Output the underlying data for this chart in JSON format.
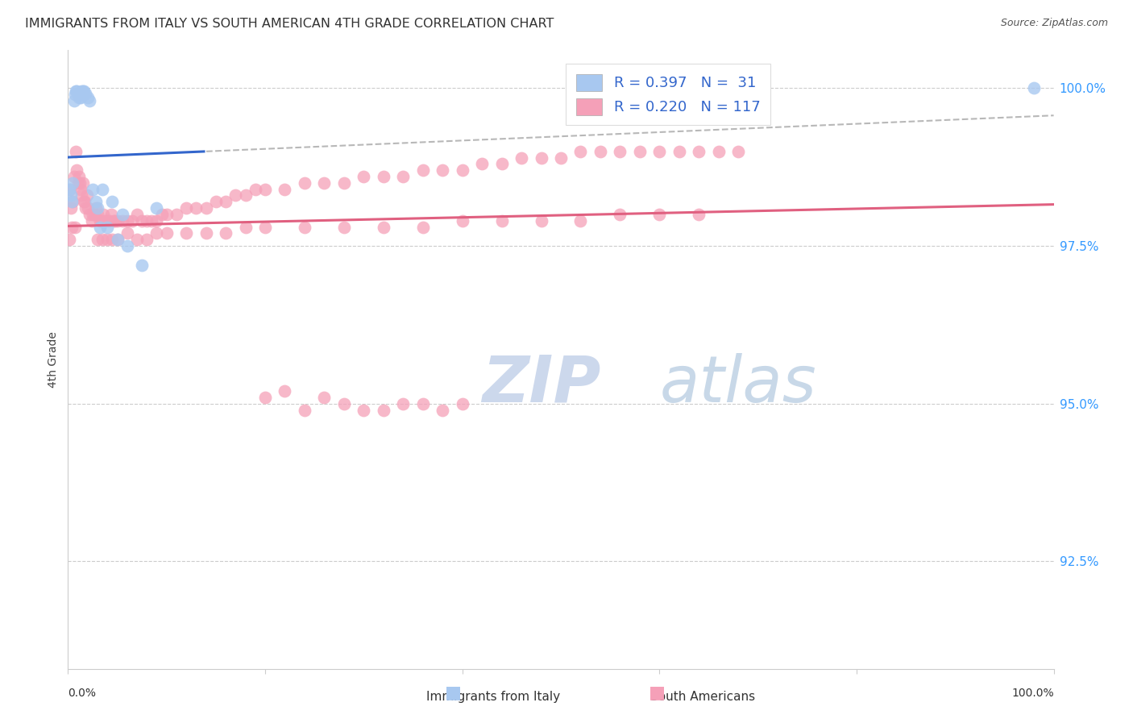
{
  "title": "IMMIGRANTS FROM ITALY VS SOUTH AMERICAN 4TH GRADE CORRELATION CHART",
  "source": "Source: ZipAtlas.com",
  "ylabel": "4th Grade",
  "ytick_values": [
    1.0,
    0.975,
    0.95,
    0.925
  ],
  "xmin": 0.0,
  "xmax": 1.0,
  "ymin": 0.908,
  "ymax": 1.006,
  "legend_italy_r": "R = 0.397",
  "legend_italy_n": "N =  31",
  "legend_sa_r": "R = 0.220",
  "legend_sa_n": "N = 117",
  "italy_color": "#a8c8f0",
  "sa_color": "#f5a0b8",
  "italy_line_color": "#3366cc",
  "sa_line_color": "#e06080",
  "dashed_line_color": "#b8b8b8",
  "background_color": "#ffffff",
  "watermark_zip": "ZIP",
  "watermark_atlas": "atlas",
  "watermark_zip_color": "#ccd8ec",
  "watermark_atlas_color": "#c8d8e8",
  "italy_x": [
    0.001,
    0.003,
    0.004,
    0.005,
    0.006,
    0.007,
    0.008,
    0.009,
    0.01,
    0.011,
    0.012,
    0.013,
    0.014,
    0.015,
    0.016,
    0.018,
    0.02,
    0.022,
    0.025,
    0.028,
    0.03,
    0.032,
    0.035,
    0.04,
    0.045,
    0.05,
    0.055,
    0.06,
    0.075,
    0.09,
    0.98
  ],
  "italy_y": [
    0.984,
    0.983,
    0.982,
    0.985,
    0.998,
    0.999,
    0.9995,
    0.9995,
    0.999,
    0.9985,
    0.999,
    0.9985,
    0.9995,
    0.9995,
    0.9995,
    0.9992,
    0.9985,
    0.998,
    0.984,
    0.982,
    0.981,
    0.978,
    0.984,
    0.978,
    0.982,
    0.976,
    0.98,
    0.975,
    0.972,
    0.981,
    1.0
  ],
  "sa_x": [
    0.001,
    0.002,
    0.003,
    0.004,
    0.005,
    0.006,
    0.007,
    0.008,
    0.009,
    0.01,
    0.011,
    0.012,
    0.013,
    0.014,
    0.015,
    0.016,
    0.017,
    0.018,
    0.019,
    0.02,
    0.022,
    0.024,
    0.025,
    0.027,
    0.028,
    0.03,
    0.032,
    0.034,
    0.036,
    0.038,
    0.04,
    0.042,
    0.044,
    0.046,
    0.048,
    0.05,
    0.055,
    0.06,
    0.065,
    0.07,
    0.075,
    0.08,
    0.085,
    0.09,
    0.095,
    0.1,
    0.11,
    0.12,
    0.13,
    0.14,
    0.15,
    0.16,
    0.17,
    0.18,
    0.19,
    0.2,
    0.22,
    0.24,
    0.26,
    0.28,
    0.3,
    0.32,
    0.34,
    0.36,
    0.38,
    0.4,
    0.42,
    0.44,
    0.46,
    0.48,
    0.5,
    0.52,
    0.54,
    0.56,
    0.58,
    0.6,
    0.62,
    0.64,
    0.66,
    0.68,
    0.03,
    0.035,
    0.04,
    0.045,
    0.05,
    0.06,
    0.07,
    0.08,
    0.09,
    0.1,
    0.12,
    0.14,
    0.16,
    0.18,
    0.2,
    0.24,
    0.28,
    0.32,
    0.36,
    0.4,
    0.44,
    0.48,
    0.52,
    0.56,
    0.6,
    0.64,
    0.2,
    0.22,
    0.24,
    0.26,
    0.28,
    0.3,
    0.32,
    0.34,
    0.36,
    0.38,
    0.4
  ],
  "sa_y": [
    0.976,
    0.984,
    0.981,
    0.978,
    0.982,
    0.986,
    0.978,
    0.99,
    0.987,
    0.985,
    0.986,
    0.985,
    0.984,
    0.983,
    0.985,
    0.982,
    0.982,
    0.981,
    0.983,
    0.981,
    0.98,
    0.979,
    0.98,
    0.98,
    0.981,
    0.98,
    0.979,
    0.979,
    0.98,
    0.979,
    0.979,
    0.979,
    0.98,
    0.979,
    0.979,
    0.979,
    0.979,
    0.979,
    0.979,
    0.98,
    0.979,
    0.979,
    0.979,
    0.979,
    0.98,
    0.98,
    0.98,
    0.981,
    0.981,
    0.981,
    0.982,
    0.982,
    0.983,
    0.983,
    0.984,
    0.984,
    0.984,
    0.985,
    0.985,
    0.985,
    0.986,
    0.986,
    0.986,
    0.987,
    0.987,
    0.987,
    0.988,
    0.988,
    0.989,
    0.989,
    0.989,
    0.99,
    0.99,
    0.99,
    0.99,
    0.99,
    0.99,
    0.99,
    0.99,
    0.99,
    0.976,
    0.976,
    0.976,
    0.976,
    0.976,
    0.977,
    0.976,
    0.976,
    0.977,
    0.977,
    0.977,
    0.977,
    0.977,
    0.978,
    0.978,
    0.978,
    0.978,
    0.978,
    0.978,
    0.979,
    0.979,
    0.979,
    0.979,
    0.98,
    0.98,
    0.98,
    0.951,
    0.952,
    0.949,
    0.951,
    0.95,
    0.949,
    0.949,
    0.95,
    0.95,
    0.949,
    0.95
  ]
}
